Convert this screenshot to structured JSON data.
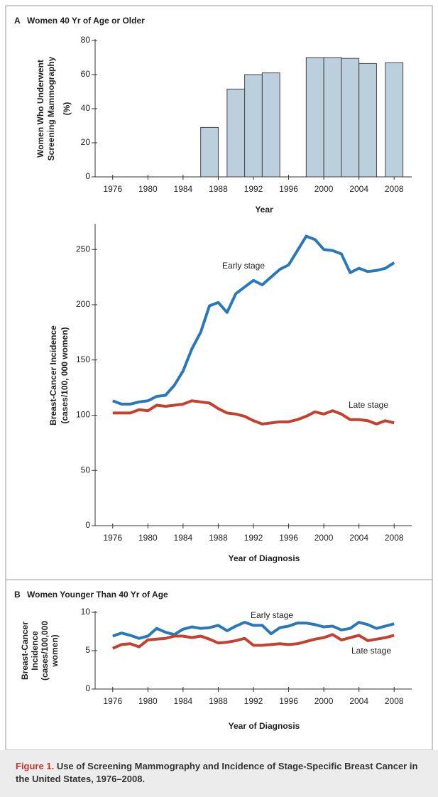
{
  "chart_data": [
    {
      "type": "bar",
      "panel": "A",
      "title": "Women 40 Yr of Age or Older",
      "ylabel": [
        "Women Who Underwent",
        "Screening Mammography",
        "(%)"
      ],
      "xlabel": "Year",
      "x": [
        1987,
        1990,
        1992,
        1994,
        1999,
        2001,
        2003,
        2005,
        2008
      ],
      "values": [
        29,
        51.5,
        60,
        61,
        70,
        70,
        69.5,
        66.5,
        67
      ],
      "color": "#bccfdc",
      "xlim": [
        1974,
        2010
      ],
      "xticks": [
        1976,
        1980,
        1984,
        1988,
        1992,
        1996,
        2000,
        2004,
        2008
      ],
      "ylim": [
        0,
        80
      ],
      "yticks": [
        0,
        20,
        40,
        60,
        80
      ]
    },
    {
      "type": "line",
      "ylabel": [
        "Breast-Cancer Incidence",
        "(cases/100, 000 women)"
      ],
      "xlabel": "Year of Diagnosis",
      "x": [
        1976,
        1977,
        1978,
        1979,
        1980,
        1981,
        1982,
        1983,
        1984,
        1985,
        1986,
        1987,
        1988,
        1989,
        1990,
        1991,
        1992,
        1993,
        1994,
        1995,
        1996,
        1997,
        1998,
        1999,
        2000,
        2001,
        2002,
        2003,
        2004,
        2005,
        2006,
        2007,
        2008
      ],
      "series": [
        {
          "name": "Early stage",
          "color": "#2a78b8",
          "values": [
            113,
            110,
            110,
            112,
            113,
            117,
            118,
            127,
            140,
            160,
            175,
            199,
            202,
            193,
            210,
            216,
            222,
            218,
            225,
            232,
            236,
            249,
            262,
            259,
            250,
            249,
            246,
            229,
            233,
            230,
            231,
            233,
            238
          ]
        },
        {
          "name": "Late stage",
          "color": "#c4412f",
          "values": [
            102,
            102,
            102,
            105,
            104,
            109,
            108,
            109,
            110,
            113,
            112,
            111,
            106,
            102,
            101,
            99,
            95,
            92,
            93,
            94,
            94,
            96,
            99,
            103,
            101,
            104,
            101,
            96,
            96,
            95,
            92,
            95,
            93
          ]
        }
      ],
      "xlim": [
        1974,
        2010
      ],
      "xticks": [
        1976,
        1980,
        1984,
        1988,
        1992,
        1996,
        2000,
        2004,
        2008
      ],
      "ylim": [
        0,
        272
      ],
      "yticks": [
        0,
        50,
        100,
        150,
        200,
        250
      ]
    },
    {
      "type": "line",
      "panel": "B",
      "title": "Women Younger Than 40 Yr of Age",
      "ylabel": [
        "Breast-Cancer",
        "Incidence",
        "(cases/100,000",
        "women)"
      ],
      "xlabel": "Year of Diagnosis",
      "x": [
        1976,
        1977,
        1978,
        1979,
        1980,
        1981,
        1982,
        1983,
        1984,
        1985,
        1986,
        1987,
        1988,
        1989,
        1990,
        1991,
        1992,
        1993,
        1994,
        1995,
        1996,
        1997,
        1998,
        1999,
        2000,
        2001,
        2002,
        2003,
        2004,
        2005,
        2006,
        2007,
        2008
      ],
      "series": [
        {
          "name": "Early stage",
          "color": "#2a78b8",
          "values": [
            6.9,
            7.3,
            7.0,
            6.6,
            6.9,
            7.9,
            7.4,
            7.1,
            7.8,
            8.1,
            7.9,
            8.0,
            8.3,
            7.6,
            8.2,
            8.7,
            8.3,
            8.3,
            7.2,
            8.0,
            8.2,
            8.6,
            8.6,
            8.4,
            8.1,
            8.2,
            7.7,
            7.9,
            8.7,
            8.4,
            7.9,
            8.2,
            8.5
          ]
        },
        {
          "name": "Late stage",
          "color": "#c4412f",
          "values": [
            5.3,
            5.8,
            5.9,
            5.5,
            6.4,
            6.5,
            6.6,
            6.9,
            6.9,
            6.7,
            6.9,
            6.5,
            6.0,
            6.1,
            6.3,
            6.6,
            5.7,
            5.7,
            5.8,
            5.9,
            5.8,
            5.9,
            6.2,
            6.5,
            6.7,
            7.1,
            6.4,
            6.7,
            7.0,
            6.3,
            6.5,
            6.7,
            7.0
          ]
        }
      ],
      "xlim": [
        1974,
        2010
      ],
      "xticks": [
        1976,
        1980,
        1984,
        1988,
        1992,
        1996,
        2000,
        2004,
        2008
      ],
      "ylim": [
        0,
        10
      ],
      "yticks": [
        0,
        5,
        10
      ]
    }
  ],
  "caption": {
    "label": "Figure 1.",
    "text": "Use of Screening Mammography and Incidence of Stage-Specific Breast Cancer in the United States, 1976–2008."
  }
}
